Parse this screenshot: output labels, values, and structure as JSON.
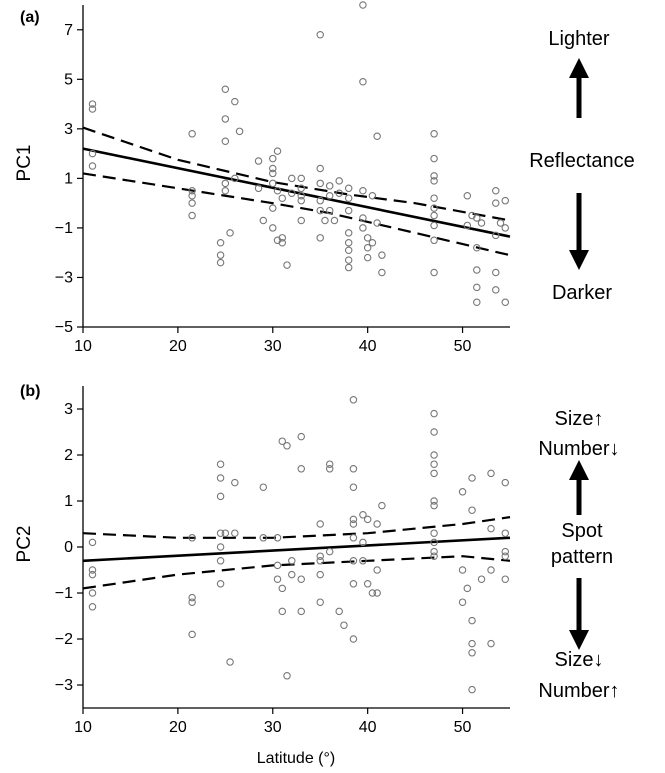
{
  "chart_data": [
    {
      "panel": "(a)",
      "type": "scatter",
      "ylabel": "PC1",
      "xlabel": "",
      "xlim": [
        10,
        55
      ],
      "ylim": [
        -5,
        8
      ],
      "xticks": [
        10,
        20,
        30,
        40,
        50
      ],
      "yticks": [
        -5,
        -3,
        -1,
        1,
        3,
        5,
        7
      ],
      "fit": {
        "x": [
          10,
          55
        ],
        "y": [
          2.2,
          -1.35
        ]
      },
      "ci_upper": {
        "x": [
          10,
          20,
          30,
          38,
          45,
          55
        ],
        "y": [
          3.05,
          1.75,
          0.85,
          0.35,
          0.0,
          -0.7
        ]
      },
      "ci_lower": {
        "x": [
          10,
          20,
          30,
          36,
          45,
          55
        ],
        "y": [
          1.2,
          0.6,
          0.0,
          -0.4,
          -1.2,
          -2.1
        ]
      },
      "points": [
        [
          11,
          4.0
        ],
        [
          11,
          3.8
        ],
        [
          11,
          2.0
        ],
        [
          11,
          1.5
        ],
        [
          21.5,
          2.8
        ],
        [
          21.5,
          0.5
        ],
        [
          21.5,
          0.3
        ],
        [
          21.5,
          0.0
        ],
        [
          21.5,
          -0.5
        ],
        [
          24.5,
          -1.6
        ],
        [
          24.5,
          -2.1
        ],
        [
          24.5,
          -2.4
        ],
        [
          25,
          4.6
        ],
        [
          25,
          3.4
        ],
        [
          25,
          2.5
        ],
        [
          25,
          0.8
        ],
        [
          25,
          0.5
        ],
        [
          25.5,
          -1.2
        ],
        [
          26,
          4.1
        ],
        [
          26,
          1.0
        ],
        [
          26.5,
          2.9
        ],
        [
          28.5,
          1.7
        ],
        [
          28.5,
          0.6
        ],
        [
          29,
          -0.7
        ],
        [
          30,
          1.8
        ],
        [
          30,
          1.4
        ],
        [
          30,
          1.2
        ],
        [
          30,
          0.8
        ],
        [
          30,
          -0.2
        ],
        [
          30,
          -1.0
        ],
        [
          30.5,
          2.1
        ],
        [
          30.5,
          0.5
        ],
        [
          30.5,
          -1.5
        ],
        [
          31,
          0.2
        ],
        [
          31,
          -1.4
        ],
        [
          31,
          -1.6
        ],
        [
          31.5,
          -2.5
        ],
        [
          32,
          1.0
        ],
        [
          32,
          0.4
        ],
        [
          33,
          1.0
        ],
        [
          33,
          0.6
        ],
        [
          33,
          0.3
        ],
        [
          33,
          0.1
        ],
        [
          33,
          -0.7
        ],
        [
          35,
          6.8
        ],
        [
          35,
          1.4
        ],
        [
          35,
          0.8
        ],
        [
          35,
          0.1
        ],
        [
          35,
          -0.3
        ],
        [
          35,
          -1.4
        ],
        [
          35.5,
          -0.7
        ],
        [
          36,
          0.7
        ],
        [
          36,
          0.3
        ],
        [
          36,
          -0.3
        ],
        [
          36.5,
          -0.7
        ],
        [
          37,
          0.9
        ],
        [
          37,
          0.4
        ],
        [
          38,
          0.6
        ],
        [
          38,
          0.2
        ],
        [
          38,
          -0.3
        ],
        [
          38,
          -1.2
        ],
        [
          38,
          -1.6
        ],
        [
          38,
          -1.9
        ],
        [
          38,
          -2.3
        ],
        [
          38,
          -2.6
        ],
        [
          39.5,
          8.0
        ],
        [
          39.5,
          4.9
        ],
        [
          39.5,
          0.5
        ],
        [
          39.5,
          -0.6
        ],
        [
          39.5,
          -1.0
        ],
        [
          40,
          -1.4
        ],
        [
          40,
          -1.8
        ],
        [
          40,
          -2.2
        ],
        [
          40.5,
          0.3
        ],
        [
          40.5,
          -1.6
        ],
        [
          41,
          2.7
        ],
        [
          41,
          -0.8
        ],
        [
          41.5,
          -2.1
        ],
        [
          41.5,
          -2.8
        ],
        [
          47,
          2.8
        ],
        [
          47,
          1.8
        ],
        [
          47,
          1.1
        ],
        [
          47,
          0.9
        ],
        [
          47,
          0.2
        ],
        [
          47,
          -0.2
        ],
        [
          47,
          -0.5
        ],
        [
          47,
          -0.9
        ],
        [
          47,
          -1.5
        ],
        [
          47,
          -2.8
        ],
        [
          50.5,
          0.3
        ],
        [
          50.5,
          -0.9
        ],
        [
          51,
          -0.5
        ],
        [
          51.5,
          -0.6
        ],
        [
          51.5,
          -1.8
        ],
        [
          51.5,
          -2.7
        ],
        [
          51.5,
          -3.4
        ],
        [
          51.5,
          -4.0
        ],
        [
          52,
          -0.8
        ],
        [
          53.5,
          0.5
        ],
        [
          53.5,
          0.0
        ],
        [
          53.5,
          -1.3
        ],
        [
          53.5,
          -2.8
        ],
        [
          53.5,
          -3.5
        ],
        [
          54,
          -0.8
        ],
        [
          54.5,
          0.1
        ],
        [
          54.5,
          -1.0
        ],
        [
          54.5,
          -4.0
        ]
      ],
      "annotations": {
        "top": "Lighter",
        "middle": "Reflectance",
        "bottom": "Darker"
      }
    },
    {
      "panel": "(b)",
      "type": "scatter",
      "ylabel": "PC2",
      "xlabel": "Latitude (°)",
      "xlim": [
        10,
        55
      ],
      "ylim": [
        -3.5,
        3.5
      ],
      "xticks": [
        10,
        20,
        30,
        40,
        50
      ],
      "yticks": [
        -3,
        -2,
        -1,
        0,
        1,
        2,
        3
      ],
      "fit": {
        "x": [
          10,
          55
        ],
        "y": [
          -0.3,
          0.2
        ]
      },
      "ci_upper": {
        "x": [
          10,
          20,
          30,
          40,
          50,
          55
        ],
        "y": [
          0.3,
          0.2,
          0.2,
          0.3,
          0.5,
          0.65
        ]
      },
      "ci_lower": {
        "x": [
          10,
          20,
          30,
          40,
          50,
          55
        ],
        "y": [
          -0.9,
          -0.6,
          -0.4,
          -0.3,
          -0.2,
          -0.3
        ]
      },
      "points": [
        [
          11,
          0.1
        ],
        [
          11,
          -0.5
        ],
        [
          11,
          -0.6
        ],
        [
          11,
          -1.0
        ],
        [
          11,
          -1.3
        ],
        [
          21.5,
          0.2
        ],
        [
          21.5,
          -1.1
        ],
        [
          21.5,
          -1.2
        ],
        [
          21.5,
          -1.9
        ],
        [
          24.5,
          1.8
        ],
        [
          24.5,
          1.5
        ],
        [
          24.5,
          1.1
        ],
        [
          24.5,
          0.3
        ],
        [
          24.5,
          0.0
        ],
        [
          24.5,
          -0.3
        ],
        [
          24.5,
          -0.8
        ],
        [
          25,
          0.3
        ],
        [
          25.5,
          -2.5
        ],
        [
          26,
          1.4
        ],
        [
          26,
          0.3
        ],
        [
          29,
          1.3
        ],
        [
          29,
          0.2
        ],
        [
          30.5,
          0.2
        ],
        [
          30.5,
          -0.4
        ],
        [
          30.5,
          -0.7
        ],
        [
          31,
          2.3
        ],
        [
          31,
          -0.9
        ],
        [
          31,
          -1.4
        ],
        [
          31.5,
          2.2
        ],
        [
          31.5,
          -2.8
        ],
        [
          32,
          -0.3
        ],
        [
          32,
          -0.6
        ],
        [
          33,
          2.4
        ],
        [
          33,
          1.7
        ],
        [
          33,
          -0.7
        ],
        [
          33,
          -1.4
        ],
        [
          35,
          0.5
        ],
        [
          35,
          -0.2
        ],
        [
          35,
          -0.3
        ],
        [
          35,
          -0.6
        ],
        [
          35,
          -1.2
        ],
        [
          36,
          1.8
        ],
        [
          36,
          1.7
        ],
        [
          36,
          -0.1
        ],
        [
          37,
          -1.4
        ],
        [
          37.5,
          -1.7
        ],
        [
          38.5,
          3.2
        ],
        [
          38.5,
          1.7
        ],
        [
          38.5,
          1.3
        ],
        [
          38.5,
          0.6
        ],
        [
          38.5,
          0.5
        ],
        [
          38.5,
          0.2
        ],
        [
          38.5,
          -0.3
        ],
        [
          38.5,
          -0.8
        ],
        [
          38.5,
          -2.0
        ],
        [
          39.5,
          0.7
        ],
        [
          39.5,
          0.1
        ],
        [
          39.5,
          -0.3
        ],
        [
          40,
          0.6
        ],
        [
          40,
          -0.8
        ],
        [
          40.5,
          -1.0
        ],
        [
          41,
          0.5
        ],
        [
          41,
          -0.5
        ],
        [
          41,
          -1.0
        ],
        [
          41.5,
          0.9
        ],
        [
          47,
          2.9
        ],
        [
          47,
          2.5
        ],
        [
          47,
          2.0
        ],
        [
          47,
          1.8
        ],
        [
          47,
          1.6
        ],
        [
          47,
          1.0
        ],
        [
          47,
          0.9
        ],
        [
          47,
          0.3
        ],
        [
          47,
          0.1
        ],
        [
          47,
          -0.1
        ],
        [
          47,
          -0.2
        ],
        [
          50,
          1.2
        ],
        [
          50,
          -0.5
        ],
        [
          50,
          -1.2
        ],
        [
          50.5,
          -0.9
        ],
        [
          51,
          1.5
        ],
        [
          51,
          0.8
        ],
        [
          51,
          -1.6
        ],
        [
          51,
          -2.1
        ],
        [
          51,
          -2.3
        ],
        [
          51,
          -3.1
        ],
        [
          52,
          -0.7
        ],
        [
          53,
          1.6
        ],
        [
          53,
          0.4
        ],
        [
          53,
          -0.5
        ],
        [
          53,
          -2.1
        ],
        [
          54.5,
          1.4
        ],
        [
          54.5,
          0.3
        ],
        [
          54.5,
          -0.1
        ],
        [
          54.5,
          -0.2
        ],
        [
          54.5,
          -0.7
        ]
      ],
      "annotations": {
        "top1": "Size↑",
        "top2": "Number↓",
        "middle1": "Spot",
        "middle2": "pattern",
        "bottom1": "Size↓",
        "bottom2": "Number↑"
      }
    }
  ]
}
